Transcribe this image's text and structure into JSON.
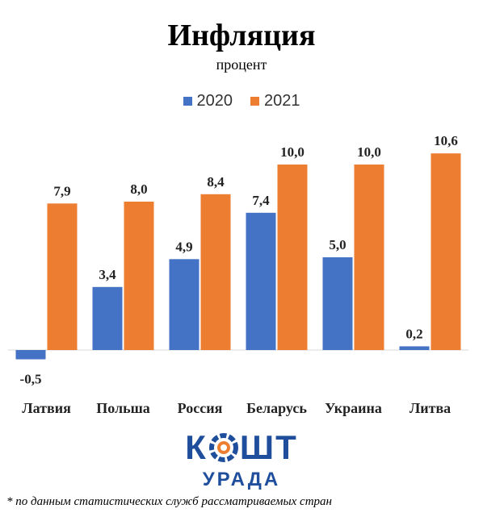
{
  "chart_data": {
    "type": "bar",
    "title": "Инфляция",
    "subtitle": "процент",
    "categories": [
      "Латвия",
      "Польша",
      "Россия",
      "Беларусь",
      "Украина",
      "Литва"
    ],
    "series": [
      {
        "name": "2020",
        "color": "#4472c4",
        "values": [
          -0.5,
          3.4,
          4.9,
          7.4,
          5.0,
          0.2
        ],
        "labels": [
          "-0,5",
          "3,4",
          "4,9",
          "7,4",
          "5,0",
          "0,2"
        ]
      },
      {
        "name": "2021",
        "color": "#ed7d31",
        "values": [
          7.9,
          8.0,
          8.4,
          10.0,
          10.0,
          10.6
        ],
        "labels": [
          "7,9",
          "8,0",
          "8,4",
          "10,0",
          "10,0",
          "10,6"
        ]
      }
    ],
    "xlabel": "",
    "ylabel": "",
    "ylim": [
      -0.5,
      11
    ],
    "grid": false,
    "legend_position": "top"
  },
  "logo": {
    "main_left": "К",
    "main_right": "ШТ",
    "sub": "УРАДА",
    "color": "#1f4e9c",
    "accent": "#ed7d31"
  },
  "footnote": "* по данным статистических служб рассматриваемых стран"
}
